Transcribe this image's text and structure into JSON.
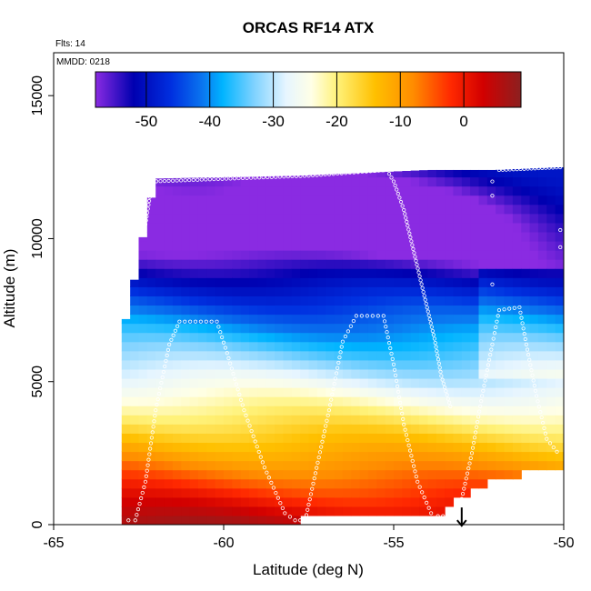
{
  "chart_data": {
    "type": "heatmap",
    "title": "ORCAS RF14 ATX",
    "flight_note": "Flts: 14",
    "date_note": "MMDD: 0218",
    "xlabel": "Latitude (deg N)",
    "ylabel": "Altitude (m)",
    "xlim": [
      -65,
      -50
    ],
    "ylim": [
      0,
      16500
    ],
    "x_ticks": [
      -65,
      -60,
      -55,
      -50
    ],
    "x_tick_labels": [
      "-65",
      "-60",
      "-55",
      "-50"
    ],
    "y_ticks": [
      0,
      5000,
      10000,
      15000
    ],
    "y_tick_labels": [
      "0",
      "5000",
      "10000",
      "15000"
    ],
    "grid": false,
    "colorbar": {
      "placement": "top-inside",
      "range": [
        -58,
        9
      ],
      "ticks": [
        -50,
        -40,
        -30,
        -20,
        -10,
        0
      ],
      "tick_labels": [
        "-50",
        "-40",
        "-30",
        "-20",
        "-10",
        "0"
      ],
      "palette": [
        {
          "value": -58,
          "color": "#8a2be2"
        },
        {
          "value": -52,
          "color": "#0000b0"
        },
        {
          "value": -46,
          "color": "#0030e0"
        },
        {
          "value": -41,
          "color": "#0a78f0"
        },
        {
          "value": -38,
          "color": "#00b4ff"
        },
        {
          "value": -33,
          "color": "#7fd2ff"
        },
        {
          "value": -28,
          "color": "#e6f5ff"
        },
        {
          "value": -24,
          "color": "#ffffe6"
        },
        {
          "value": -20,
          "color": "#fff27a"
        },
        {
          "value": -14,
          "color": "#ffc000"
        },
        {
          "value": -8,
          "color": "#ff8c00"
        },
        {
          "value": -2,
          "color": "#ff2800"
        },
        {
          "value": 3,
          "color": "#d20000"
        },
        {
          "value": 9,
          "color": "#8c2020"
        }
      ]
    },
    "field": {
      "description": "air temperature (deg C) as a function of latitude and altitude",
      "surface_temp_south": 7,
      "surface_temp_north": 3,
      "lapse_rate_per_km": -6.5,
      "tropopause_altitude": 10500,
      "cold_core": {
        "latitude": -55.5,
        "altitude": 10800,
        "temp": -60
      },
      "data_cover": [
        {
          "lat": -63.0,
          "top": 6500
        },
        {
          "lat": -62.6,
          "top": 8700
        },
        {
          "lat": -62.3,
          "top": 10500
        },
        {
          "lat": -62.0,
          "top": 12100
        },
        {
          "lat": -57.8,
          "top": 12200
        },
        {
          "lat": -54.0,
          "top": 12400
        },
        {
          "lat": -52.0,
          "top": 12400
        },
        {
          "lat": -50.0,
          "top": 12500
        }
      ],
      "data_floor": [
        {
          "lat": -63.0,
          "bottom": 0
        },
        {
          "lat": -57.8,
          "bottom": 0
        },
        {
          "lat": -57.6,
          "bottom": 300
        },
        {
          "lat": -53.5,
          "bottom": 300
        },
        {
          "lat": -53.1,
          "bottom": 900
        },
        {
          "lat": -52.0,
          "bottom": 1600
        },
        {
          "lat": -50.0,
          "bottom": 2000
        }
      ],
      "missing_strip": {
        "lat_from": -52.4,
        "lat_to": -50.0,
        "alt_from": 2000,
        "alt_to": 8600,
        "status": "filled"
      }
    },
    "flight_track": [
      {
        "lat": -62.8,
        "alt": 150
      },
      {
        "lat": -62.6,
        "alt": 150
      },
      {
        "lat": -62.3,
        "alt": 1500
      },
      {
        "lat": -62.0,
        "alt": 4000
      },
      {
        "lat": -61.6,
        "alt": 6300
      },
      {
        "lat": -61.3,
        "alt": 7100
      },
      {
        "lat": -60.2,
        "alt": 7100
      },
      {
        "lat": -59.9,
        "alt": 6000
      },
      {
        "lat": -59.4,
        "alt": 4000
      },
      {
        "lat": -58.8,
        "alt": 2000
      },
      {
        "lat": -58.2,
        "alt": 400
      },
      {
        "lat": -57.9,
        "alt": 150
      },
      {
        "lat": -57.6,
        "alt": 150
      },
      {
        "lat": -57.3,
        "alt": 1800
      },
      {
        "lat": -56.9,
        "alt": 4000
      },
      {
        "lat": -56.5,
        "alt": 6400
      },
      {
        "lat": -56.1,
        "alt": 7300
      },
      {
        "lat": -55.3,
        "alt": 7300
      },
      {
        "lat": -55.0,
        "alt": 5600
      },
      {
        "lat": -54.7,
        "alt": 3500
      },
      {
        "lat": -54.3,
        "alt": 1500
      },
      {
        "lat": -53.9,
        "alt": 400
      },
      {
        "lat": -53.7,
        "alt": 300
      },
      {
        "lat": -53.1,
        "alt": 300
      },
      {
        "lat": -53.0,
        "alt": 900
      },
      {
        "lat": -52.7,
        "alt": 2500
      },
      {
        "lat": -52.4,
        "alt": 4500
      },
      {
        "lat": -52.1,
        "alt": 6300
      },
      {
        "lat": -51.9,
        "alt": 7500
      },
      {
        "lat": -51.3,
        "alt": 7600
      },
      {
        "lat": -51.1,
        "alt": 6300
      },
      {
        "lat": -50.8,
        "alt": 4500
      },
      {
        "lat": -50.5,
        "alt": 3000
      },
      {
        "lat": -50.1,
        "alt": 2400
      }
    ],
    "ascent_track": [
      {
        "lat": -62.3,
        "alt": 10500
      },
      {
        "lat": -62.1,
        "alt": 12000
      },
      {
        "lat": -57.5,
        "alt": 12200
      },
      {
        "lat": -55.2,
        "alt": 12400
      },
      {
        "lat": -55.0,
        "alt": 12000
      },
      {
        "lat": -54.7,
        "alt": 11000
      },
      {
        "lat": -54.4,
        "alt": 9500
      },
      {
        "lat": -54.1,
        "alt": 8000
      },
      {
        "lat": -53.8,
        "alt": 6500
      },
      {
        "lat": -53.6,
        "alt": 5200
      },
      {
        "lat": -53.3,
        "alt": 4000
      }
    ],
    "upper_track": [
      {
        "lat": -51.9,
        "alt": 12400
      },
      {
        "lat": -50.0,
        "alt": 12500
      }
    ],
    "outlier_points": [
      {
        "lat": -62.3,
        "alt": 10500
      },
      {
        "lat": -50.1,
        "alt": 9700
      },
      {
        "lat": -50.1,
        "alt": 10300
      },
      {
        "lat": -52.1,
        "alt": 8400
      },
      {
        "lat": -52.1,
        "alt": 11500
      },
      {
        "lat": -52.1,
        "alt": 12000
      }
    ],
    "end_marker": {
      "lat": -53.0,
      "alt": 600,
      "symbol": "down-arrow"
    },
    "colors": {
      "track_point": "#ffffff",
      "frame": "#000000"
    }
  }
}
